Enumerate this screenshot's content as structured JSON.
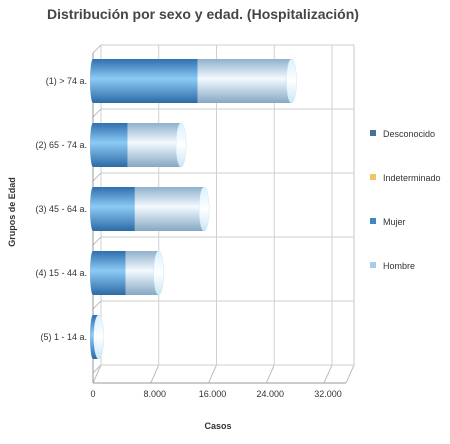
{
  "chart_data": {
    "type": "bar",
    "orientation": "horizontal",
    "stacked": true,
    "title": "Distribución por sexo y edad. (Hospitalización)",
    "xlabel": "Casos",
    "ylabel": "Grupos de Edad",
    "categories": [
      "(1) > 74 a.",
      "(2) 65 - 74 a.",
      "(3) 45 - 64 a.",
      "(4) 15 - 44 a.",
      "(5) 1 - 14 a."
    ],
    "series": [
      {
        "name": "Desconocido",
        "color": "#4a6f94",
        "values": [
          0,
          0,
          0,
          0,
          0
        ]
      },
      {
        "name": "Indeterminado",
        "color": "#f0c566",
        "values": [
          0,
          0,
          0,
          0,
          0
        ]
      },
      {
        "name": "Mujer",
        "color": "#3f88c5",
        "values": [
          14500,
          4800,
          5800,
          4500,
          600
        ]
      },
      {
        "name": "Hombre",
        "color": "#a9cde8",
        "values": [
          13000,
          7400,
          9600,
          4600,
          200
        ]
      }
    ],
    "xlim": [
      0,
      32000
    ],
    "xticks": [
      "0",
      "8.000",
      "16.000",
      "24.000",
      "32.000"
    ],
    "grid": true,
    "legend_position": "right"
  }
}
